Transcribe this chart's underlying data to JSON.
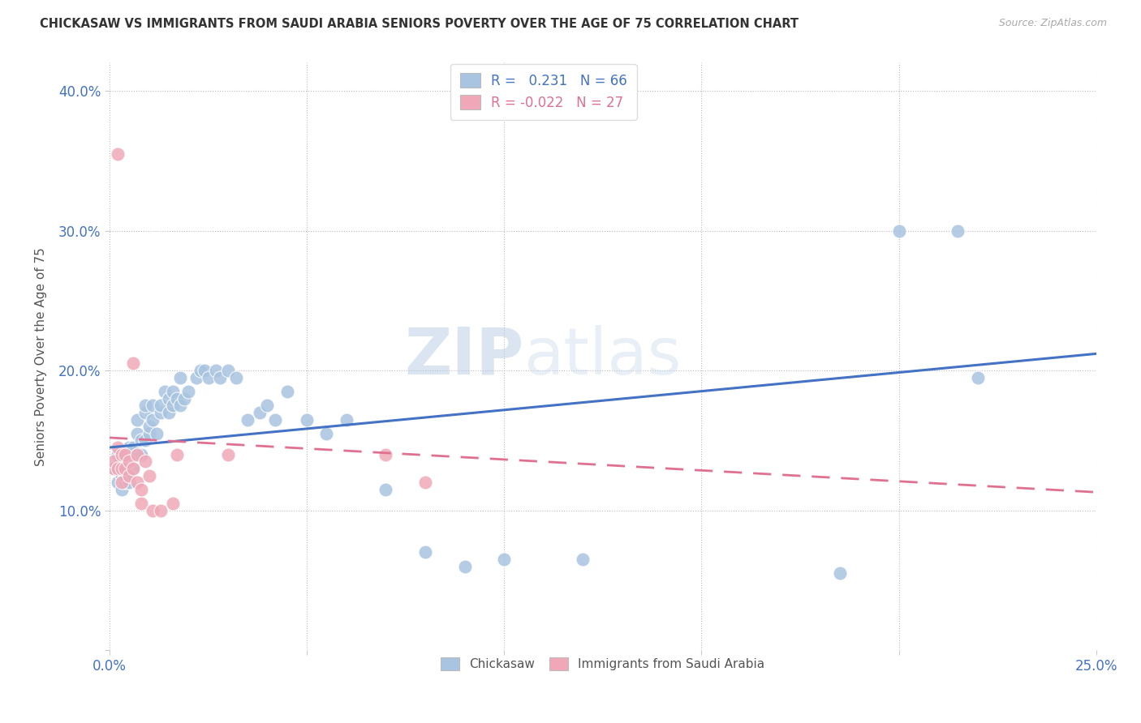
{
  "title": "CHICKASAW VS IMMIGRANTS FROM SAUDI ARABIA SENIORS POVERTY OVER THE AGE OF 75 CORRELATION CHART",
  "source": "Source: ZipAtlas.com",
  "ylabel": "Seniors Poverty Over the Age of 75",
  "xlim": [
    0.0,
    0.25
  ],
  "ylim": [
    0.0,
    0.42
  ],
  "xticks": [
    0.0,
    0.05,
    0.1,
    0.15,
    0.2,
    0.25
  ],
  "xticklabels": [
    "0.0%",
    "",
    "",
    "",
    "",
    "25.0%"
  ],
  "yticks": [
    0.0,
    0.1,
    0.2,
    0.3,
    0.4
  ],
  "yticklabels": [
    "",
    "10.0%",
    "20.0%",
    "30.0%",
    "40.0%"
  ],
  "blue_R": 0.231,
  "blue_N": 66,
  "pink_R": -0.022,
  "pink_N": 27,
  "blue_color": "#a8c4e0",
  "pink_color": "#f0a8b8",
  "blue_line_color": "#4472c4",
  "pink_line_color": "#e07090",
  "title_color": "#333333",
  "axis_color": "#4472c4",
  "watermark_zip": "ZIP",
  "watermark_atlas": "atlas",
  "blue_scatter_x": [
    0.001,
    0.002,
    0.002,
    0.003,
    0.003,
    0.003,
    0.004,
    0.004,
    0.004,
    0.004,
    0.005,
    0.005,
    0.005,
    0.005,
    0.006,
    0.006,
    0.007,
    0.007,
    0.007,
    0.008,
    0.008,
    0.009,
    0.009,
    0.009,
    0.01,
    0.01,
    0.011,
    0.011,
    0.012,
    0.013,
    0.013,
    0.014,
    0.015,
    0.015,
    0.016,
    0.016,
    0.017,
    0.018,
    0.018,
    0.019,
    0.02,
    0.022,
    0.023,
    0.024,
    0.025,
    0.027,
    0.028,
    0.03,
    0.032,
    0.035,
    0.038,
    0.04,
    0.042,
    0.045,
    0.05,
    0.055,
    0.06,
    0.07,
    0.08,
    0.09,
    0.1,
    0.12,
    0.185,
    0.2,
    0.215,
    0.22
  ],
  "blue_scatter_y": [
    0.13,
    0.12,
    0.14,
    0.115,
    0.125,
    0.13,
    0.12,
    0.125,
    0.13,
    0.135,
    0.12,
    0.125,
    0.14,
    0.145,
    0.13,
    0.145,
    0.14,
    0.155,
    0.165,
    0.14,
    0.15,
    0.15,
    0.17,
    0.175,
    0.155,
    0.16,
    0.165,
    0.175,
    0.155,
    0.17,
    0.175,
    0.185,
    0.17,
    0.18,
    0.175,
    0.185,
    0.18,
    0.175,
    0.195,
    0.18,
    0.185,
    0.195,
    0.2,
    0.2,
    0.195,
    0.2,
    0.195,
    0.2,
    0.195,
    0.165,
    0.17,
    0.175,
    0.165,
    0.185,
    0.165,
    0.155,
    0.165,
    0.115,
    0.07,
    0.06,
    0.065,
    0.065,
    0.055,
    0.3,
    0.3,
    0.195
  ],
  "pink_scatter_x": [
    0.001,
    0.001,
    0.002,
    0.002,
    0.002,
    0.003,
    0.003,
    0.003,
    0.004,
    0.004,
    0.005,
    0.005,
    0.006,
    0.006,
    0.007,
    0.007,
    0.008,
    0.008,
    0.009,
    0.01,
    0.011,
    0.013,
    0.016,
    0.017,
    0.03,
    0.07,
    0.08
  ],
  "pink_scatter_y": [
    0.13,
    0.135,
    0.355,
    0.13,
    0.145,
    0.12,
    0.13,
    0.14,
    0.13,
    0.14,
    0.125,
    0.135,
    0.13,
    0.205,
    0.12,
    0.14,
    0.105,
    0.115,
    0.135,
    0.125,
    0.1,
    0.1,
    0.105,
    0.14,
    0.14,
    0.14,
    0.12
  ],
  "blue_line_x": [
    0.0,
    0.25
  ],
  "blue_line_y": [
    0.145,
    0.212
  ],
  "pink_line_x": [
    0.0,
    0.25
  ],
  "pink_line_y": [
    0.152,
    0.113
  ]
}
